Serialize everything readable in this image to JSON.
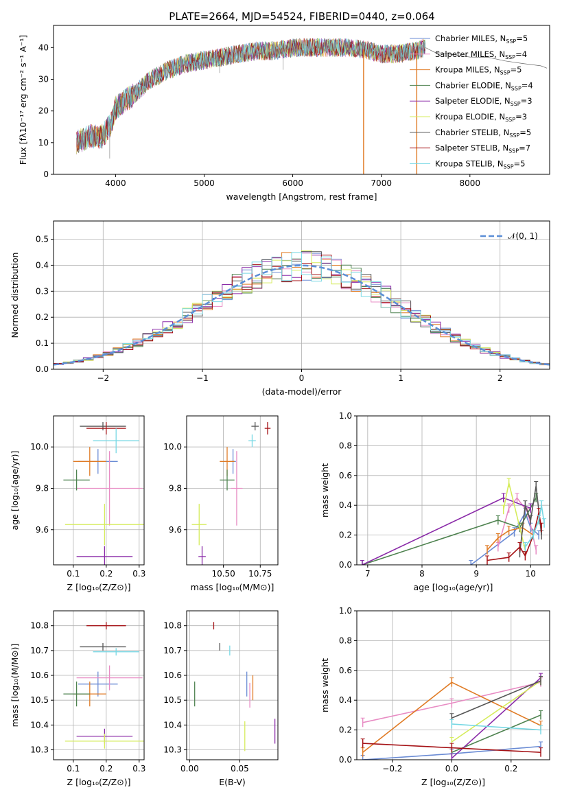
{
  "figure": {
    "title": "PLATE=2664, MJD=54524, FIBERID=0440, z=0.064"
  },
  "models": [
    {
      "name": "Chabrier MILES",
      "nssp": "5",
      "color": "#6a8bd4"
    },
    {
      "name": "Salpeter MILES",
      "nssp": "4",
      "color": "#e88cc4"
    },
    {
      "name": "Kroupa MILES",
      "nssp": "5",
      "color": "#e07b25"
    },
    {
      "name": "Chabrier ELODIE",
      "nssp": "4",
      "color": "#4f8350"
    },
    {
      "name": "Salpeter ELODIE",
      "nssp": "3",
      "color": "#8a2aa8"
    },
    {
      "name": "Kroupa ELODIE",
      "nssp": "3",
      "color": "#d6ec5c"
    },
    {
      "name": "Chabrier STELIB",
      "nssp": "5",
      "color": "#555555"
    },
    {
      "name": "Salpeter STELIB",
      "nssp": "7",
      "color": "#a51216"
    },
    {
      "name": "Kroupa STELIB",
      "nssp": "5",
      "color": "#78d8e4"
    }
  ],
  "chart_data": [
    {
      "type": "line",
      "id": "spectrum",
      "title": "PLATE=2664, MJD=54524, FIBERID=0440, z=0.064",
      "xlabel": "wavelength [Angstrom, rest frame]",
      "ylabel": "Flux [fλ10⁻¹⁷ erg cm⁻² s⁻¹ A⁻¹]",
      "xlim": [
        3300,
        8900
      ],
      "ylim": [
        0,
        47
      ],
      "xticks": [
        "4000",
        "5000",
        "6000",
        "7000",
        "8000"
      ],
      "yticks": [
        "0",
        "10",
        "20",
        "30",
        "40"
      ],
      "continuum": [
        [
          3560,
          10
        ],
        [
          3700,
          12
        ],
        [
          3850,
          12
        ],
        [
          3950,
          16
        ],
        [
          4000,
          21
        ],
        [
          4200,
          25
        ],
        [
          4400,
          30
        ],
        [
          4600,
          33
        ],
        [
          4800,
          35
        ],
        [
          5000,
          36
        ],
        [
          5200,
          37
        ],
        [
          5400,
          38
        ],
        [
          5600,
          39
        ],
        [
          5800,
          39
        ],
        [
          6000,
          40
        ],
        [
          6200,
          40
        ],
        [
          6400,
          40
        ],
        [
          6600,
          40
        ],
        [
          6800,
          39.5
        ],
        [
          7000,
          38
        ],
        [
          7200,
          38
        ],
        [
          7400,
          39
        ],
        [
          7500,
          40
        ]
      ],
      "observed_continuum": [
        [
          7500,
          40
        ],
        [
          7600,
          39
        ],
        [
          7800,
          38
        ],
        [
          8000,
          37.5
        ],
        [
          8200,
          37
        ],
        [
          8400,
          36
        ],
        [
          8600,
          35
        ],
        [
          8800,
          34.5
        ],
        [
          8870,
          34
        ]
      ],
      "absorption_lines": [
        [
          3934,
          5
        ],
        [
          5175,
          32
        ],
        [
          5890,
          33
        ],
        [
          6800,
          0
        ],
        [
          7400,
          0
        ]
      ],
      "grid": false
    },
    {
      "type": "histogram",
      "id": "residuals",
      "xlabel": "(data-model)/error",
      "ylabel": "Normed distribution",
      "xlim": [
        -2.5,
        2.5
      ],
      "ylim": [
        0,
        0.57
      ],
      "xticks": [
        "−2",
        "−1",
        "0",
        "1",
        "2"
      ],
      "yticks": [
        "0.0",
        "0.1",
        "0.2",
        "0.3",
        "0.4",
        "0.5"
      ],
      "reference_label": "𝒩(0, 1)",
      "reference_color": "#5b8ed6",
      "legend": "top-right",
      "grid": true
    },
    {
      "type": "scatter",
      "id": "age-vs-Z",
      "xlabel": "Z [log₁₀(Z/Z⊙)]",
      "ylabel": "age  [log₁₀(age/yr)]",
      "xlim": [
        0.04,
        0.315
      ],
      "ylim": [
        9.43,
        10.15
      ],
      "xticks": [
        "0.1",
        "0.2",
        "0.3"
      ],
      "yticks": [
        "9.6",
        "9.8",
        "10.0"
      ],
      "points": [
        {
          "x": 0.175,
          "xerr": 0.06,
          "y": 9.93,
          "yerr": 0.06
        },
        {
          "x": 0.21,
          "xerr": 0.1,
          "y": 9.8,
          "yerr": 0.18
        },
        {
          "x": 0.15,
          "xerr": 0.05,
          "y": 9.93,
          "yerr": 0.07
        },
        {
          "x": 0.11,
          "xerr": 0.04,
          "y": 9.84,
          "yerr": 0.05
        },
        {
          "x": 0.195,
          "xerr": 0.085,
          "y": 9.47,
          "yerr": 0.05
        },
        {
          "x": 0.195,
          "xerr": 0.12,
          "y": 9.625,
          "yerr": 0.1
        },
        {
          "x": 0.19,
          "xerr": 0.07,
          "y": 10.1,
          "yerr": 0.02
        },
        {
          "x": 0.2,
          "xerr": 0.06,
          "y": 10.09,
          "yerr": 0.03
        },
        {
          "x": 0.23,
          "xerr": 0.07,
          "y": 10.03,
          "yerr": 0.06
        }
      ],
      "grid": true
    },
    {
      "type": "scatter",
      "id": "age-vs-mass",
      "xlabel": "mass [log₁₀(M/M⊙)]",
      "ylabel": "",
      "xlim": [
        10.25,
        10.87
      ],
      "ylim": [
        9.43,
        10.15
      ],
      "xticks": [
        "10.50",
        "10.75"
      ],
      "yticks": [
        "9.6",
        "9.8",
        "10.0"
      ],
      "points": [
        {
          "x": 10.565,
          "xerr": 0.02,
          "y": 9.93,
          "yerr": 0.06
        },
        {
          "x": 10.59,
          "xerr": 0.04,
          "y": 9.8,
          "yerr": 0.18
        },
        {
          "x": 10.525,
          "xerr": 0.05,
          "y": 9.93,
          "yerr": 0.07
        },
        {
          "x": 10.525,
          "xerr": 0.05,
          "y": 9.84,
          "yerr": 0.05
        },
        {
          "x": 10.355,
          "xerr": 0.025,
          "y": 9.47,
          "yerr": 0.05
        },
        {
          "x": 10.335,
          "xerr": 0.05,
          "y": 9.625,
          "yerr": 0.1
        },
        {
          "x": 10.715,
          "xerr": 0.025,
          "y": 10.1,
          "yerr": 0.02
        },
        {
          "x": 10.8,
          "xerr": 0.02,
          "y": 10.09,
          "yerr": 0.03
        },
        {
          "x": 10.695,
          "xerr": 0.025,
          "y": 10.03,
          "yerr": 0.03
        }
      ],
      "grid": true
    },
    {
      "type": "line",
      "id": "mass-weight-vs-age",
      "xlabel": "age  [log₁₀(age/yr)]",
      "ylabel": "mass weight",
      "xlim": [
        6.8,
        10.35
      ],
      "ylim": [
        0,
        1
      ],
      "xticks": [
        "7",
        "8",
        "9",
        "10"
      ],
      "yticks": [
        "0.0",
        "0.2",
        "0.4",
        "0.6",
        "0.8",
        "1.0"
      ],
      "series": [
        {
          "x": [
            8.9,
            9.7,
            9.9,
            10.0,
            10.15
          ],
          "y": [
            0.0,
            0.22,
            0.35,
            0.25,
            0.2
          ]
        },
        {
          "x": [
            9.4,
            9.6,
            9.75,
            9.95,
            10.1
          ],
          "y": [
            0.12,
            0.38,
            0.45,
            0.35,
            0.1
          ]
        },
        {
          "x": [
            9.2,
            9.4,
            9.6,
            9.85,
            10.05
          ],
          "y": [
            0.1,
            0.18,
            0.23,
            0.25,
            0.2
          ]
        },
        {
          "x": [
            6.9,
            9.4,
            9.8,
            10.1
          ],
          "y": [
            0.0,
            0.3,
            0.25,
            0.45
          ]
        },
        {
          "x": [
            6.9,
            9.5,
            10.0
          ],
          "y": [
            0.0,
            0.45,
            0.38
          ]
        },
        {
          "x": [
            9.5,
            9.6,
            9.9
          ],
          "y": [
            0.37,
            0.55,
            0.1
          ]
        },
        {
          "x": [
            9.8,
            9.9,
            10.0,
            10.1,
            10.2
          ],
          "y": [
            0.08,
            0.4,
            0.3,
            0.53,
            0.2
          ]
        },
        {
          "x": [
            9.2,
            9.6,
            9.8,
            9.9,
            10.05,
            10.15,
            10.2
          ],
          "y": [
            0.03,
            0.05,
            0.12,
            0.06,
            0.2,
            0.35,
            0.25
          ]
        },
        {
          "x": [
            9.9,
            10.05,
            10.15,
            10.2,
            10.25
          ],
          "y": [
            0.12,
            0.2,
            0.3,
            0.4,
            0.28
          ]
        }
      ],
      "grid": true
    },
    {
      "type": "scatter",
      "id": "mass-vs-Z",
      "xlabel": "Z [log₁₀(Z/Z⊙)]",
      "ylabel": "mass [log₁₀(M/M⊙)]",
      "xlim": [
        0.04,
        0.315
      ],
      "ylim": [
        10.26,
        10.86
      ],
      "xticks": [
        "0.1",
        "0.2",
        "0.3"
      ],
      "yticks": [
        "10.3",
        "10.4",
        "10.5",
        "10.6",
        "10.7",
        "10.8"
      ],
      "points": [
        {
          "x": 0.175,
          "xerr": 0.06,
          "y": 10.565,
          "yerr": 0.05
        },
        {
          "x": 0.21,
          "xerr": 0.1,
          "y": 10.59,
          "yerr": 0.05
        },
        {
          "x": 0.15,
          "xerr": 0.05,
          "y": 10.525,
          "yerr": 0.05
        },
        {
          "x": 0.11,
          "xerr": 0.04,
          "y": 10.525,
          "yerr": 0.05
        },
        {
          "x": 0.195,
          "xerr": 0.085,
          "y": 10.355,
          "yerr": 0.03
        },
        {
          "x": 0.195,
          "xerr": 0.12,
          "y": 10.335,
          "yerr": 0.03
        },
        {
          "x": 0.19,
          "xerr": 0.07,
          "y": 10.715,
          "yerr": 0.015
        },
        {
          "x": 0.2,
          "xerr": 0.06,
          "y": 10.8,
          "yerr": 0.015
        },
        {
          "x": 0.23,
          "xerr": 0.07,
          "y": 10.695,
          "yerr": 0.015
        }
      ],
      "grid": true
    },
    {
      "type": "scatter",
      "id": "mass-vs-ebv",
      "xlabel": "E(B-V)",
      "ylabel": "",
      "xlim": [
        -0.003,
        0.088
      ],
      "ylim": [
        10.26,
        10.86
      ],
      "xticks": [
        "0.00",
        "0.05"
      ],
      "yticks": [
        "10.3",
        "10.4",
        "10.5",
        "10.6",
        "10.7",
        "10.8"
      ],
      "points": [
        {
          "x": 0.057,
          "y": 10.565,
          "yerr": 0.05
        },
        {
          "x": 0.06,
          "y": 10.52,
          "yerr": 0.05
        },
        {
          "x": 0.063,
          "y": 10.55,
          "yerr": 0.05
        },
        {
          "x": 0.005,
          "y": 10.525,
          "yerr": 0.05
        },
        {
          "x": 0.085,
          "y": 10.375,
          "yerr": 0.05
        },
        {
          "x": 0.055,
          "y": 10.355,
          "yerr": 0.06
        },
        {
          "x": 0.03,
          "y": 10.715,
          "yerr": 0.015
        },
        {
          "x": 0.024,
          "y": 10.8,
          "yerr": 0.015
        },
        {
          "x": 0.04,
          "y": 10.7,
          "yerr": 0.02
        }
      ],
      "grid": true
    },
    {
      "type": "line",
      "id": "mass-weight-vs-Z",
      "xlabel": "Z [log₁₀(Z/Z⊙)]",
      "ylabel": "mass weight",
      "xlim": [
        -0.32,
        0.33
      ],
      "ylim": [
        0,
        1
      ],
      "xticks": [
        "−0.2",
        "0.0",
        "0.2"
      ],
      "yticks": [
        "0.0",
        "0.2",
        "0.4",
        "0.6",
        "0.8",
        "1.0"
      ],
      "series": [
        {
          "x": [
            -0.3,
            0.0,
            0.3
          ],
          "y": [
            0.0,
            0.04,
            0.09
          ]
        },
        {
          "x": [
            -0.3,
            0.0,
            0.3
          ],
          "y": [
            0.25,
            0.38,
            0.52
          ]
        },
        {
          "x": [
            -0.3,
            0.0,
            0.3
          ],
          "y": [
            0.05,
            0.52,
            0.23
          ]
        },
        {
          "x": [
            0.0,
            0.3
          ],
          "y": [
            0.05,
            0.3
          ]
        },
        {
          "x": [
            0.0,
            0.3
          ],
          "y": [
            0.01,
            0.55
          ]
        },
        {
          "x": [
            0.0,
            0.3
          ],
          "y": [
            0.12,
            0.53
          ]
        },
        {
          "x": [
            0.0,
            0.3
          ],
          "y": [
            0.28,
            0.53
          ]
        },
        {
          "x": [
            -0.3,
            0.0,
            0.3
          ],
          "y": [
            0.11,
            0.08,
            0.05
          ]
        },
        {
          "x": [
            0.0,
            0.3
          ],
          "y": [
            0.24,
            0.2
          ]
        }
      ],
      "grid": true
    }
  ]
}
